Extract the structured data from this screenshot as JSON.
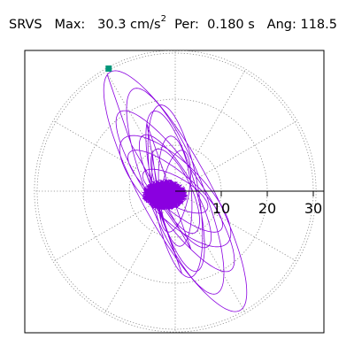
{
  "header": {
    "station": "SRVS",
    "max_label": "Max:",
    "max_value": "30.3 cm/s",
    "max_exp": "2",
    "per_label": "Per:",
    "per_value": "0.180 s",
    "ang_label": "Ang:",
    "ang_value": "118.5"
  },
  "chart_data": {
    "type": "polar-orbit",
    "title": "SRVS  Max: 30.3 cm/s2  Per: 0.180 s  Ang: 118.5",
    "units": "cm/s2",
    "r_ticks": [
      "10",
      "20",
      "30"
    ],
    "r_values": [
      10,
      20,
      30
    ],
    "r_max": 30.3,
    "peak_angle_deg": 118.5,
    "grid": "dotted concentric circles, spokes every 30 degrees",
    "marker": "peak point",
    "colors": {
      "trace": "#8a00e0",
      "grid": "#888888",
      "axis": "#000000",
      "marker": "#00967a"
    }
  }
}
